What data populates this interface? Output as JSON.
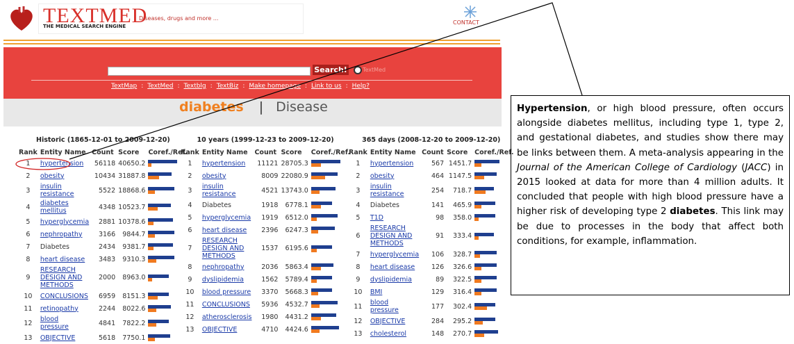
{
  "header": {
    "logo_title": "TEXTMED",
    "logo_subtitle": "THE MEDICAL SEARCH ENGINE",
    "tagline": "Diseases, drugs and more ...",
    "contact": "CONTACT"
  },
  "search": {
    "button": "Search!",
    "option": "TextMed"
  },
  "nav": [
    "TextMap",
    "TextMed",
    "Textblg",
    "TextBiz",
    "Make homepage",
    "Link to us",
    "Help?"
  ],
  "nav_separator": ":",
  "query": {
    "term": "diabetes",
    "separator": "|",
    "category": "Disease"
  },
  "tables": [
    {
      "title": "Historic (1865-12-01 to 2009-12-20)",
      "columns": [
        "Rank",
        "Entity Name",
        "Count",
        "Score",
        "Coref./Ref."
      ],
      "rows": [
        {
          "rank": 1,
          "name": "hypertension",
          "link": true,
          "count": 56118,
          "score": "40650.2",
          "coref": 42,
          "ref": 5
        },
        {
          "rank": 2,
          "name": "obesity",
          "link": true,
          "count": 10434,
          "score": "31887.8",
          "coref": 34,
          "ref": 16
        },
        {
          "rank": 3,
          "name": "insulin resistance",
          "link": true,
          "count": 5522,
          "score": "18868.6",
          "coref": 38,
          "ref": 10
        },
        {
          "rank": 4,
          "name": "diabetes mellitus",
          "link": true,
          "count": 4348,
          "score": "10523.7",
          "coref": 33,
          "ref": 14
        },
        {
          "rank": 5,
          "name": "hyperglycemia",
          "link": true,
          "count": 2881,
          "score": "10378.6",
          "coref": 36,
          "ref": 8
        },
        {
          "rank": 6,
          "name": "nephropathy",
          "link": true,
          "count": 3166,
          "score": "9844.7",
          "coref": 38,
          "ref": 10
        },
        {
          "rank": 7,
          "name": "Diabetes",
          "link": false,
          "count": 2434,
          "score": "9381.7",
          "coref": 36,
          "ref": 8
        },
        {
          "rank": 8,
          "name": "heart disease",
          "link": true,
          "count": 3483,
          "score": "9310.3",
          "coref": 38,
          "ref": 12
        },
        {
          "rank": 9,
          "name": "RESEARCH DESIGN AND METHODS",
          "link": true,
          "count": 2000,
          "score": "8963.0",
          "coref": 30,
          "ref": 6
        },
        {
          "rank": 10,
          "name": "CONCLUSIONS",
          "link": true,
          "count": 6959,
          "score": "8151.3",
          "coref": 30,
          "ref": 14
        },
        {
          "rank": 11,
          "name": "retinopathy",
          "link": true,
          "count": 2244,
          "score": "8022.6",
          "coref": 33,
          "ref": 12
        },
        {
          "rank": 12,
          "name": "blood pressure",
          "link": true,
          "count": 4841,
          "score": "7822.2",
          "coref": 30,
          "ref": 12
        },
        {
          "rank": 13,
          "name": "OBJECTIVE",
          "link": true,
          "count": 5618,
          "score": "7750.1",
          "coref": 32,
          "ref": 10
        }
      ]
    },
    {
      "title": "10 years (1999-12-23 to 2009-12-20)",
      "columns": [
        "Rank",
        "Entity Name",
        "Count",
        "Score",
        "Coref./Ref."
      ],
      "rows": [
        {
          "rank": 1,
          "name": "hypertension",
          "link": true,
          "count": 11121,
          "score": "28705.3",
          "coref": 42,
          "ref": 14
        },
        {
          "rank": 2,
          "name": "obesity",
          "link": true,
          "count": 8009,
          "score": "22080.9",
          "coref": 38,
          "ref": 20
        },
        {
          "rank": 3,
          "name": "insulin resistance",
          "link": true,
          "count": 4521,
          "score": "13743.0",
          "coref": 35,
          "ref": 12
        },
        {
          "rank": 4,
          "name": "Diabetes",
          "link": false,
          "count": 1918,
          "score": "6778.1",
          "coref": 30,
          "ref": 14
        },
        {
          "rank": 5,
          "name": "hyperglycemia",
          "link": true,
          "count": 1919,
          "score": "6512.0",
          "coref": 38,
          "ref": 8
        },
        {
          "rank": 6,
          "name": "heart disease",
          "link": true,
          "count": 2396,
          "score": "6247.3",
          "coref": 34,
          "ref": 10
        },
        {
          "rank": 7,
          "name": "RESEARCH DESIGN AND METHODS",
          "link": true,
          "count": 1537,
          "score": "6195.6",
          "coref": 30,
          "ref": 8
        },
        {
          "rank": 8,
          "name": "nephropathy",
          "link": true,
          "count": 2036,
          "score": "5863.4",
          "coref": 32,
          "ref": 14
        },
        {
          "rank": 9,
          "name": "dyslipidemia",
          "link": true,
          "count": 1562,
          "score": "5789.4",
          "coref": 30,
          "ref": 8
        },
        {
          "rank": 10,
          "name": "blood pressure",
          "link": true,
          "count": 3370,
          "score": "5668.3",
          "coref": 30,
          "ref": 10
        },
        {
          "rank": 11,
          "name": "CONCLUSIONS",
          "link": true,
          "count": 5936,
          "score": "4532.7",
          "coref": 38,
          "ref": 12
        },
        {
          "rank": 12,
          "name": "atherosclerosis",
          "link": true,
          "count": 1980,
          "score": "4431.2",
          "coref": 36,
          "ref": 14
        },
        {
          "rank": 13,
          "name": "OBJECTIVE",
          "link": true,
          "count": 4710,
          "score": "4424.6",
          "coref": 40,
          "ref": 12
        }
      ]
    },
    {
      "title": "365 days (2008-12-20 to 2009-12-20)",
      "columns": [
        "Rank",
        "Entity Name",
        "Count",
        "Score",
        "Coref./Ref."
      ],
      "rows": [
        {
          "rank": 1,
          "name": "hypertension",
          "link": true,
          "count": 567,
          "score": "1451.7",
          "coref": 36,
          "ref": 10
        },
        {
          "rank": 2,
          "name": "obesity",
          "link": true,
          "count": 464,
          "score": "1147.5",
          "coref": 32,
          "ref": 14
        },
        {
          "rank": 3,
          "name": "insulin resistance",
          "link": true,
          "count": 254,
          "score": "718.7",
          "coref": 28,
          "ref": 16
        },
        {
          "rank": 4,
          "name": "Diabetes",
          "link": false,
          "count": 141,
          "score": "465.9",
          "coref": 30,
          "ref": 10
        },
        {
          "rank": 5,
          "name": "T1D",
          "link": true,
          "count": 98,
          "score": "358.0",
          "coref": 30,
          "ref": 6
        },
        {
          "rank": 6,
          "name": "RESEARCH DESIGN AND METHODS",
          "link": true,
          "count": 91,
          "score": "333.4",
          "coref": 28,
          "ref": 6
        },
        {
          "rank": 7,
          "name": "hyperglycemia",
          "link": true,
          "count": 106,
          "score": "328.7",
          "coref": 32,
          "ref": 8
        },
        {
          "rank": 8,
          "name": "heart disease",
          "link": true,
          "count": 126,
          "score": "326.6",
          "coref": 32,
          "ref": 10
        },
        {
          "rank": 9,
          "name": "dyslipidemia",
          "link": true,
          "count": 89,
          "score": "322.5",
          "coref": 32,
          "ref": 10
        },
        {
          "rank": 10,
          "name": "BMI",
          "link": true,
          "count": 129,
          "score": "316.4",
          "coref": 32,
          "ref": 10
        },
        {
          "rank": 11,
          "name": "blood pressure",
          "link": true,
          "count": 177,
          "score": "302.4",
          "coref": 30,
          "ref": 18
        },
        {
          "rank": 12,
          "name": "OBJECTIVE",
          "link": true,
          "count": 284,
          "score": "295.2",
          "coref": 30,
          "ref": 12
        },
        {
          "rank": 13,
          "name": "cholesterol",
          "link": true,
          "count": 148,
          "score": "270.7",
          "coref": 34,
          "ref": 14
        }
      ]
    }
  ],
  "note": {
    "segments": [
      {
        "text": "Hypertension",
        "style": "bold"
      },
      {
        "text": ", or high blood pressure, often occurs alongside diabetes mellitus, including type 1, type 2, and gestational diabetes, and studies show there may be links between them. A meta-analysis appearing in the ",
        "style": "normal"
      },
      {
        "text": "Journal of the American College of Cardiology",
        "style": "italic"
      },
      {
        "text": " (",
        "style": "normal"
      },
      {
        "text": "JACC",
        "style": "italic"
      },
      {
        "text": ") in 2015 looked at data for more than 4 million adults. It concluded that people with high blood pressure have a higher risk of developing type 2 ",
        "style": "normal"
      },
      {
        "text": "diabetes",
        "style": "bold"
      },
      {
        "text": ". This link may be due to processes in the body that affect both conditions, for example, inflammation.",
        "style": "normal"
      }
    ]
  }
}
